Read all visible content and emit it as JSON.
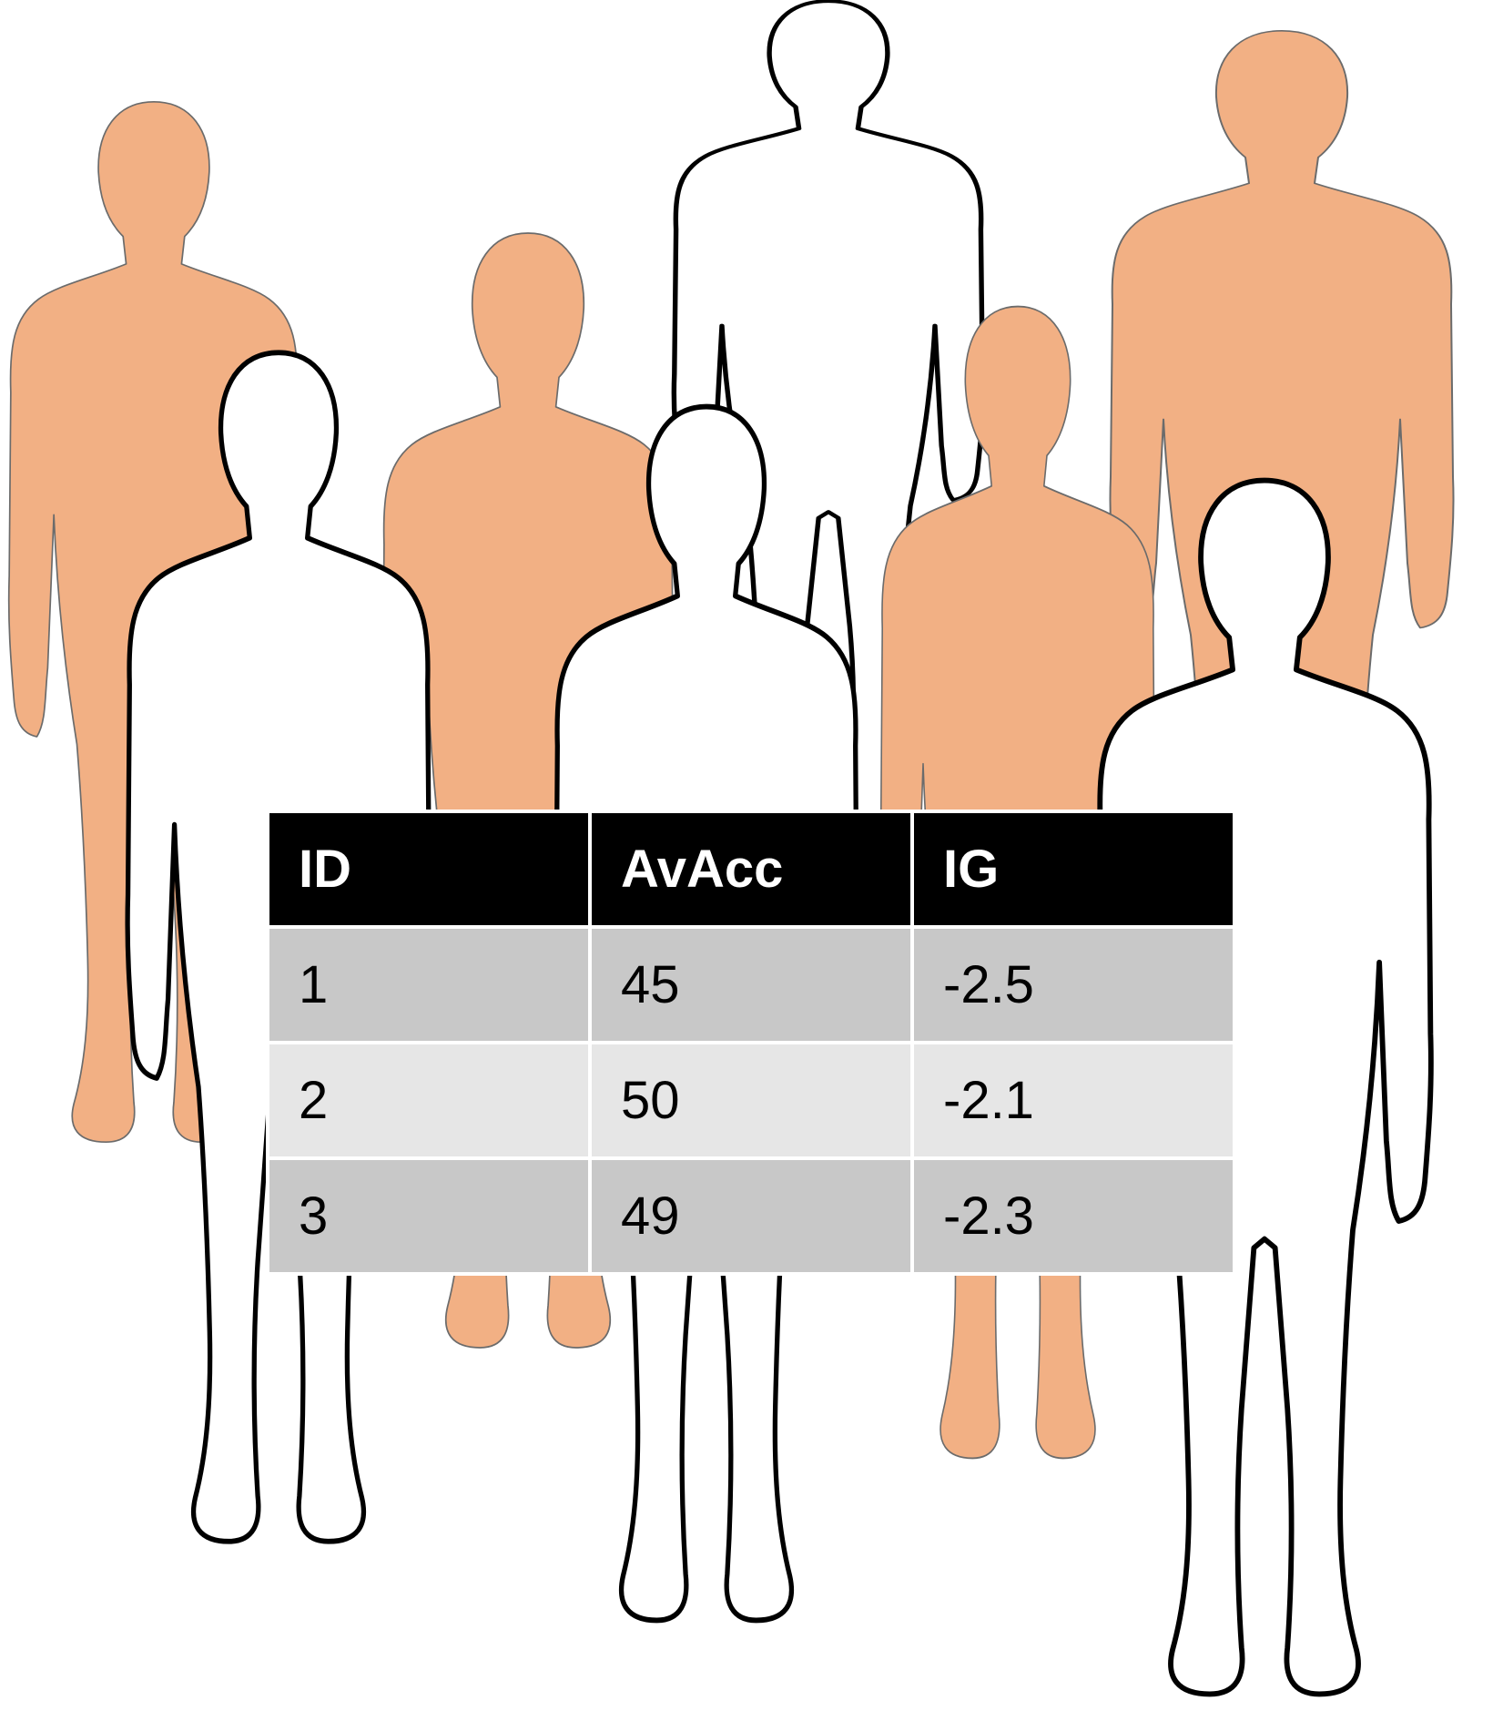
{
  "colors": {
    "filled_figure": "#f2b084",
    "outline_figure_fill": "#ffffff",
    "outline_figure_stroke": "#000000",
    "header_background": "#000000",
    "header_text": "#ffffff",
    "row_dark": "#c8c8c8",
    "row_light": "#e6e6e6"
  },
  "figures": [
    {
      "style": "filled",
      "description": "filled-silhouette"
    },
    {
      "style": "filled",
      "description": "filled-silhouette"
    },
    {
      "style": "outline",
      "description": "outline-silhouette"
    },
    {
      "style": "filled",
      "description": "filled-silhouette"
    },
    {
      "style": "filled",
      "description": "filled-silhouette"
    },
    {
      "style": "outline",
      "description": "outline-silhouette"
    },
    {
      "style": "outline",
      "description": "outline-silhouette"
    },
    {
      "style": "outline",
      "description": "outline-silhouette"
    }
  ],
  "table": {
    "headers": [
      "ID",
      "AvAcc",
      "IG"
    ],
    "rows": [
      [
        "1",
        "45",
        "-2.5"
      ],
      [
        "2",
        "50",
        "-2.1"
      ],
      [
        "3",
        "49",
        "-2.3"
      ]
    ]
  }
}
